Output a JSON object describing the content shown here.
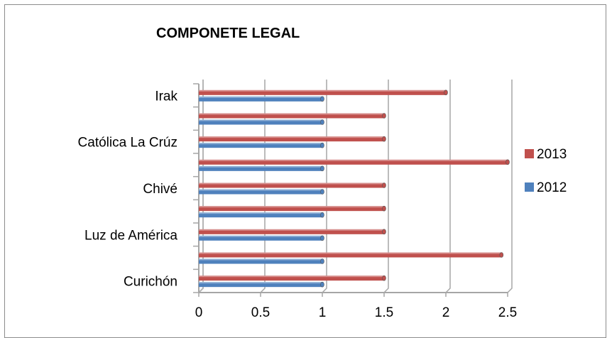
{
  "chart_data": {
    "type": "bar",
    "orientation": "horizontal",
    "title": "COMPONETE LEGAL",
    "xlabel": "",
    "ylabel": "",
    "xlim": [
      0,
      2.5
    ],
    "x_ticks": [
      "0",
      "0.5",
      "1",
      "1.5",
      "2",
      "2.5"
    ],
    "grid": true,
    "legend_position": "right",
    "categories": [
      "Curichón",
      "",
      "Luz de América",
      "",
      "Chivé",
      "",
      "Católica La Crúz",
      "",
      "Irak"
    ],
    "series": [
      {
        "name": "2012",
        "color": "#4f81bd",
        "values": [
          1,
          1,
          1,
          1,
          1,
          1,
          1,
          1,
          1
        ]
      },
      {
        "name": "2013",
        "color": "#c0504d",
        "values": [
          1.5,
          2.45,
          1.5,
          1.5,
          1.5,
          2.5,
          1.5,
          1.5,
          2.0
        ]
      }
    ],
    "legend": [
      {
        "label": "2013",
        "color": "#c0504d"
      },
      {
        "label": "2012",
        "color": "#4f81bd"
      }
    ]
  }
}
